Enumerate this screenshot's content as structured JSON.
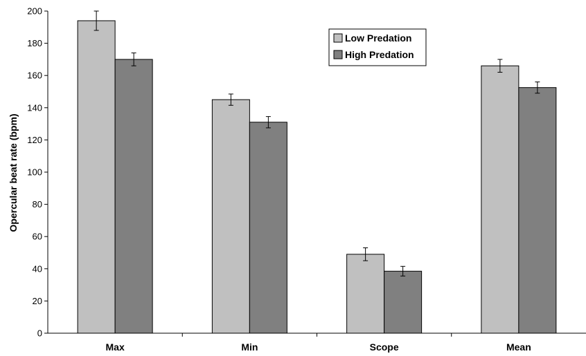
{
  "chart_data": {
    "type": "bar",
    "ylabel": "Opercular beat rate (bpm)",
    "xlabel": "",
    "ylim": [
      0,
      200
    ],
    "yticks": [
      0,
      20,
      40,
      60,
      80,
      100,
      120,
      140,
      160,
      180,
      200
    ],
    "categories": [
      "Max",
      "Min",
      "Scope",
      "Mean"
    ],
    "series": [
      {
        "name": "Low Predation",
        "color": "#c0c0c0",
        "values": [
          194,
          145,
          49,
          166
        ],
        "errors": [
          6,
          3.5,
          4,
          4
        ]
      },
      {
        "name": "High Predation",
        "color": "#808080",
        "values": [
          170,
          131,
          38.5,
          152.5
        ],
        "errors": [
          4,
          3.5,
          3,
          3.5
        ]
      }
    ],
    "legend": "top-right",
    "grid": false
  }
}
